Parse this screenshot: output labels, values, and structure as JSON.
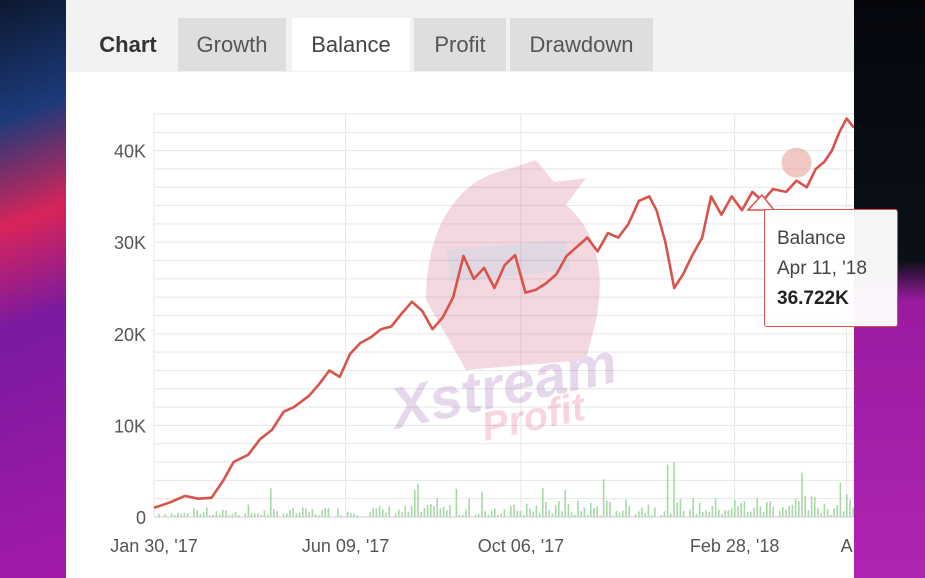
{
  "tabs": {
    "title": "Chart",
    "items": [
      {
        "label": "Growth",
        "active": false
      },
      {
        "label": "Balance",
        "active": true
      },
      {
        "label": "Profit",
        "active": false
      },
      {
        "label": "Drawdown",
        "active": false
      }
    ]
  },
  "watermark": {
    "line1": "Xstream",
    "line2": "Profit"
  },
  "tooltip": {
    "series": "Balance",
    "date": "Apr 11, '18",
    "value": "36.722K"
  },
  "colors": {
    "balance_line": "#d8534a",
    "volume_bars": "#a8d8a8",
    "tooltip_border": "#d8534a",
    "grid": "#e6e6e6"
  },
  "chart_data": {
    "type": "line",
    "ylim": [
      0,
      44000
    ],
    "yticks": [
      {
        "value": 0,
        "label": "0"
      },
      {
        "value": 10000,
        "label": "10K"
      },
      {
        "value": 20000,
        "label": "20K"
      },
      {
        "value": 30000,
        "label": "30K"
      },
      {
        "value": 40000,
        "label": "40K"
      }
    ],
    "x_range": [
      "2017-01-30",
      "2018-05-20"
    ],
    "xticks": [
      {
        "date": "2017-01-30",
        "label": "Jan 30, '17"
      },
      {
        "date": "2017-06-09",
        "label": "Jun 09, '17"
      },
      {
        "date": "2017-10-06",
        "label": "Oct 06, '17"
      },
      {
        "date": "2018-02-28",
        "label": "Feb 28, '18"
      },
      {
        "date": "2018-05-15",
        "label": "A"
      }
    ],
    "series": [
      {
        "name": "Balance",
        "points": [
          [
            "2017-01-30",
            1000
          ],
          [
            "2017-02-10",
            1600
          ],
          [
            "2017-02-20",
            2300
          ],
          [
            "2017-03-01",
            2000
          ],
          [
            "2017-03-10",
            2100
          ],
          [
            "2017-03-18",
            4000
          ],
          [
            "2017-03-25",
            6000
          ],
          [
            "2017-04-04",
            6800
          ],
          [
            "2017-04-12",
            8500
          ],
          [
            "2017-04-20",
            9500
          ],
          [
            "2017-04-28",
            11500
          ],
          [
            "2017-05-05",
            12000
          ],
          [
            "2017-05-15",
            13200
          ],
          [
            "2017-05-22",
            14500
          ],
          [
            "2017-05-29",
            16000
          ],
          [
            "2017-06-05",
            15300
          ],
          [
            "2017-06-12",
            17800
          ],
          [
            "2017-06-19",
            19000
          ],
          [
            "2017-06-26",
            19600
          ],
          [
            "2017-07-03",
            20500
          ],
          [
            "2017-07-10",
            20800
          ],
          [
            "2017-07-17",
            22200
          ],
          [
            "2017-07-24",
            23500
          ],
          [
            "2017-07-31",
            22500
          ],
          [
            "2017-08-07",
            20500
          ],
          [
            "2017-08-14",
            21800
          ],
          [
            "2017-08-21",
            24000
          ],
          [
            "2017-08-28",
            28500
          ],
          [
            "2017-09-04",
            26000
          ],
          [
            "2017-09-11",
            27200
          ],
          [
            "2017-09-18",
            25000
          ],
          [
            "2017-09-25",
            27500
          ],
          [
            "2017-10-02",
            28600
          ],
          [
            "2017-10-09",
            24500
          ],
          [
            "2017-10-16",
            24800
          ],
          [
            "2017-10-23",
            25500
          ],
          [
            "2017-10-30",
            26500
          ],
          [
            "2017-11-06",
            28500
          ],
          [
            "2017-11-13",
            29500
          ],
          [
            "2017-11-20",
            30500
          ],
          [
            "2017-11-27",
            29000
          ],
          [
            "2017-12-04",
            31000
          ],
          [
            "2017-12-11",
            30500
          ],
          [
            "2017-12-18",
            32000
          ],
          [
            "2017-12-25",
            34500
          ],
          [
            "2018-01-01",
            35000
          ],
          [
            "2018-01-06",
            33500
          ],
          [
            "2018-01-12",
            30000
          ],
          [
            "2018-01-18",
            25000
          ],
          [
            "2018-01-24",
            26500
          ],
          [
            "2018-01-30",
            28500
          ],
          [
            "2018-02-06",
            30500
          ],
          [
            "2018-02-12",
            35000
          ],
          [
            "2018-02-19",
            33000
          ],
          [
            "2018-02-26",
            35000
          ],
          [
            "2018-03-05",
            33500
          ],
          [
            "2018-03-12",
            35500
          ],
          [
            "2018-03-19",
            34500
          ],
          [
            "2018-03-26",
            35800
          ],
          [
            "2018-04-04",
            35500
          ],
          [
            "2018-04-11",
            36722
          ],
          [
            "2018-04-18",
            36000
          ],
          [
            "2018-04-24",
            38000
          ],
          [
            "2018-04-30",
            38800
          ],
          [
            "2018-05-05",
            40000
          ],
          [
            "2018-05-10",
            42000
          ],
          [
            "2018-05-15",
            43500
          ],
          [
            "2018-05-20",
            42500
          ]
        ]
      }
    ]
  }
}
